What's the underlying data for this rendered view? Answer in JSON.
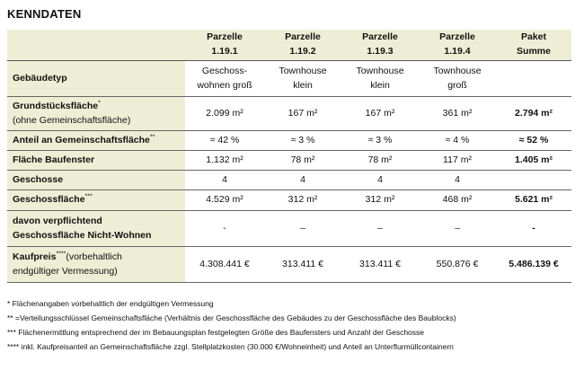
{
  "title": "KENNDATEN",
  "columns": [
    {
      "line1": "Parzelle",
      "line2": "1.19.1"
    },
    {
      "line1": "Parzelle",
      "line2": "1.19.2"
    },
    {
      "line1": "Parzelle",
      "line2": "1.19.3"
    },
    {
      "line1": "Parzelle",
      "line2": "1.19.4"
    },
    {
      "line1": "Paket",
      "line2": "Summe"
    }
  ],
  "rows": {
    "gebaeudetyp": {
      "label": "Gebäudetyp",
      "cells": [
        {
          "l1": "Geschoss-",
          "l2": "wohnen groß"
        },
        {
          "l1": "Townhouse",
          "l2": "klein"
        },
        {
          "l1": "Townhouse",
          "l2": "klein"
        },
        {
          "l1": "Townhouse",
          "l2": "groß"
        },
        {
          "l1": "",
          "l2": ""
        }
      ]
    },
    "grundstueck": {
      "label": "Grundstücksfläche",
      "sup": "*",
      "sublabel": "(ohne Gemeinschaftsfläche)",
      "values": [
        "2.099 m²",
        "167 m²",
        "167 m²",
        "361 m²",
        "2.794 m²"
      ]
    },
    "anteil": {
      "label": "Anteil an Gemeinschaftsfläche",
      "sup": "**",
      "values": [
        "≈ 42 %",
        "≈ 3 %",
        "≈ 3 %",
        "≈ 4 %",
        "≈ 52 %"
      ]
    },
    "baufenster": {
      "label": "Fläche Baufenster",
      "values": [
        "1.132 m²",
        "78 m²",
        "78 m²",
        "117 m²",
        "1.405 m²"
      ]
    },
    "geschosse": {
      "label": "Geschosse",
      "values": [
        "4",
        "4",
        "4",
        "4",
        ""
      ]
    },
    "geschossflaeche": {
      "label": "Geschossfläche",
      "sup": "***",
      "values": [
        "4.529 m²",
        "312 m²",
        "312 m²",
        "468 m²",
        "5.621 m²"
      ]
    },
    "nichtwohnen": {
      "label1": "davon verpflichtend",
      "label2": "Geschossfläche Nicht-Wohnen",
      "values": [
        "-",
        "–",
        "–",
        "–",
        "-"
      ]
    },
    "kaufpreis": {
      "label": "Kaufpreis",
      "sup": "****",
      "note1": "(vorbehaltlich",
      "note2": "endgültiger Vermessung)",
      "values": [
        "4.308.441 €",
        "313.411 €",
        "313.411 €",
        "550.876 €",
        "5.486.139 €"
      ]
    }
  },
  "footnotes": [
    "* Flächenangaben vorbehaltlich der endgültigen Vermessung",
    "** =Verteilungsschlüssel Gemeinschaftsfläche (Verhältnis der Geschossfläche des Gebäudes zu der Geschossfläche des Baublocks)",
    "*** Flächenermittlung entsprechend der im Bebauungsplan festgelegten Größe des Baufensters und Anzahl der Geschosse",
    "**** inkl. Kaufpreisanteil an Gemeinschaftsfläche zzgl. Stellplatzkosten (30.000 €/Wohneinheit) und Anteil an Unterflurmüllcontainern"
  ]
}
